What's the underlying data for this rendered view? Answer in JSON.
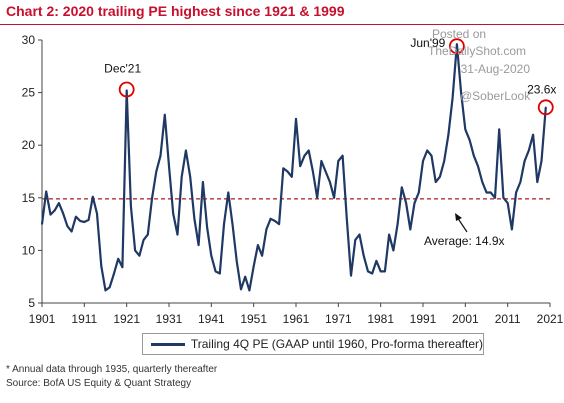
{
  "title": "Chart 2: 2020 trailing PE highest since 1921 & 1999",
  "footnote": "* Annual data through 1935, quarterly thereafter",
  "source": "Source: BofA US Equity & Quant Strategy",
  "watermark": [
    "Posted on",
    "TheDailyShot.com",
    "31-Aug-2020",
    "@SoberLook"
  ],
  "colors": {
    "title": "#c8102e",
    "series": "#1f3864",
    "average": "#c0504d",
    "marker": "#e00000"
  },
  "chart_data": {
    "type": "line",
    "title": "Chart 2: 2020 trailing PE highest since 1921 & 1999",
    "ylim": [
      5,
      30
    ],
    "xlim": [
      1901,
      2021
    ],
    "yticks": [
      5,
      10,
      15,
      20,
      25,
      30
    ],
    "xticks": [
      1901,
      1911,
      1921,
      1931,
      1941,
      1951,
      1961,
      1971,
      1981,
      1991,
      2001,
      2011,
      2021
    ],
    "grid": false,
    "legend_position": "bottom",
    "series": [
      {
        "name": "Trailing 4Q PE (GAAP until 1960, Pro-forma thereafter)",
        "x": [
          1901,
          1902,
          1903,
          1904,
          1905,
          1906,
          1907,
          1908,
          1909,
          1910,
          1911,
          1912,
          1913,
          1914,
          1915,
          1916,
          1917,
          1918,
          1919,
          1920,
          1921,
          1922,
          1923,
          1924,
          1925,
          1926,
          1927,
          1928,
          1929,
          1930,
          1931,
          1932,
          1933,
          1934,
          1935,
          1936,
          1937,
          1938,
          1939,
          1940,
          1941,
          1942,
          1943,
          1944,
          1945,
          1946,
          1947,
          1948,
          1949,
          1950,
          1951,
          1952,
          1953,
          1954,
          1955,
          1956,
          1957,
          1958,
          1959,
          1960,
          1961,
          1962,
          1963,
          1964,
          1965,
          1966,
          1967,
          1968,
          1969,
          1970,
          1971,
          1972,
          1973,
          1974,
          1975,
          1976,
          1977,
          1978,
          1979,
          1980,
          1981,
          1982,
          1983,
          1984,
          1985,
          1986,
          1987,
          1988,
          1989,
          1990,
          1991,
          1992,
          1993,
          1994,
          1995,
          1996,
          1997,
          1998,
          1999,
          2000,
          2001,
          2002,
          2003,
          2004,
          2005,
          2006,
          2007,
          2008,
          2009,
          2010,
          2011,
          2012,
          2013,
          2014,
          2015,
          2016,
          2017,
          2018,
          2019,
          2020
        ],
        "values": [
          12.5,
          15.6,
          13.4,
          13.8,
          14.5,
          13.5,
          12.3,
          11.8,
          13.2,
          12.8,
          12.7,
          12.9,
          15.1,
          13.5,
          8.5,
          6.2,
          6.5,
          7.8,
          9.2,
          8.4,
          25.2,
          14.2,
          10.0,
          9.5,
          11.0,
          11.5,
          15.0,
          17.5,
          19.0,
          22.9,
          18.0,
          13.5,
          11.5,
          17.0,
          19.5,
          17.0,
          13.0,
          10.5,
          16.5,
          12.2,
          9.5,
          8.0,
          7.8,
          12.5,
          15.5,
          12.5,
          9.0,
          6.3,
          7.5,
          6.2,
          8.5,
          10.5,
          9.5,
          12.0,
          13.0,
          12.8,
          12.5,
          17.8,
          17.5,
          17.0,
          22.5,
          18.0,
          19.0,
          19.5,
          17.5,
          15.0,
          18.5,
          17.5,
          16.5,
          15.0,
          18.5,
          19.0,
          13.0,
          7.6,
          11.0,
          11.5,
          9.5,
          8.0,
          7.8,
          9.0,
          8.0,
          8.0,
          11.5,
          10.0,
          12.5,
          16.0,
          14.5,
          12.0,
          14.5,
          15.5,
          18.5,
          19.5,
          19.0,
          16.5,
          17.0,
          18.5,
          21.0,
          24.5,
          29.6,
          25.0,
          21.5,
          20.5,
          19.0,
          18.0,
          16.5,
          15.5,
          15.5,
          15.0,
          21.5,
          15.0,
          14.5,
          12.0,
          15.5,
          16.5,
          18.5,
          19.5,
          21.0,
          16.5,
          18.5,
          23.6
        ]
      }
    ],
    "reference_line": {
      "value": 14.9,
      "label": "Average: 14.9x"
    },
    "annotations": [
      {
        "text": "Dec'21",
        "x": 1921,
        "y": 25.2
      },
      {
        "text": "Jun'99",
        "x": 1999,
        "y": 29.6
      },
      {
        "text": "23.6x",
        "x": 2020,
        "y": 23.6
      }
    ]
  }
}
